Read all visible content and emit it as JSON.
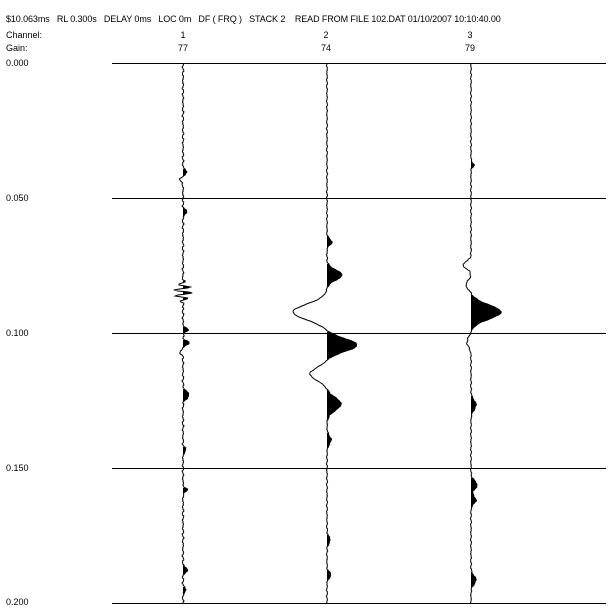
{
  "header": {
    "text": "$10.063ms   RL 0.300s   DELAY 0ms   LOC 0m   DF ( FRQ )   STACK 2    READ FROM FILE 102.DAT 01/10/2007 10:10:40.00",
    "channel_label": "Channel:",
    "gain_label": "Gain:"
  },
  "channels": [
    {
      "number": "1",
      "gain": "77"
    },
    {
      "number": "2",
      "gain": "74"
    },
    {
      "number": "3",
      "gain": "79"
    }
  ],
  "time_labels": [
    "0.000",
    "0.050",
    "0.100",
    "0.150",
    "0.200"
  ]
}
